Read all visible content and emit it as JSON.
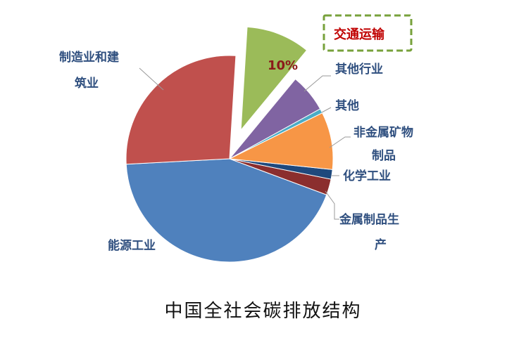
{
  "chart_data": {
    "type": "pie",
    "title": "中国全社会碳排放结构",
    "slices": [
      {
        "label": "能源工业",
        "value": 43.5,
        "color": "#4f81bd"
      },
      {
        "label": "金属制品生产",
        "value": 2.5,
        "color": "#8b2e2e"
      },
      {
        "label": "化学工业",
        "value": 1.5,
        "color": "#1f497d"
      },
      {
        "label": "非金属矿物制品",
        "value": 9.0,
        "color": "#f79646"
      },
      {
        "label": "其他",
        "value": 0.7,
        "color": "#4bacc6"
      },
      {
        "label": "其他行业",
        "value": 6.0,
        "color": "#8064a2"
      },
      {
        "label": "交通运输",
        "value": 10,
        "color": "#9bbb59",
        "exploded": true,
        "data_label": "10%"
      },
      {
        "label": "制造业和建筑业",
        "value": 26.8,
        "color": "#c0504d"
      }
    ],
    "highlight_box_color": "#77a13b"
  },
  "labels": {
    "energy": "能源工业",
    "metal": "金属制品生",
    "metal2": "产",
    "chem": "化学工业",
    "nonmetal": "非金属矿物",
    "nonmetal2": "制品",
    "other": "其他",
    "other_ind": "其他行业",
    "transport": "交通运输",
    "transport_pct": "10%",
    "mfg": "制造业和建",
    "mfg2": "筑业"
  },
  "caption": "中国全社会碳排放结构"
}
